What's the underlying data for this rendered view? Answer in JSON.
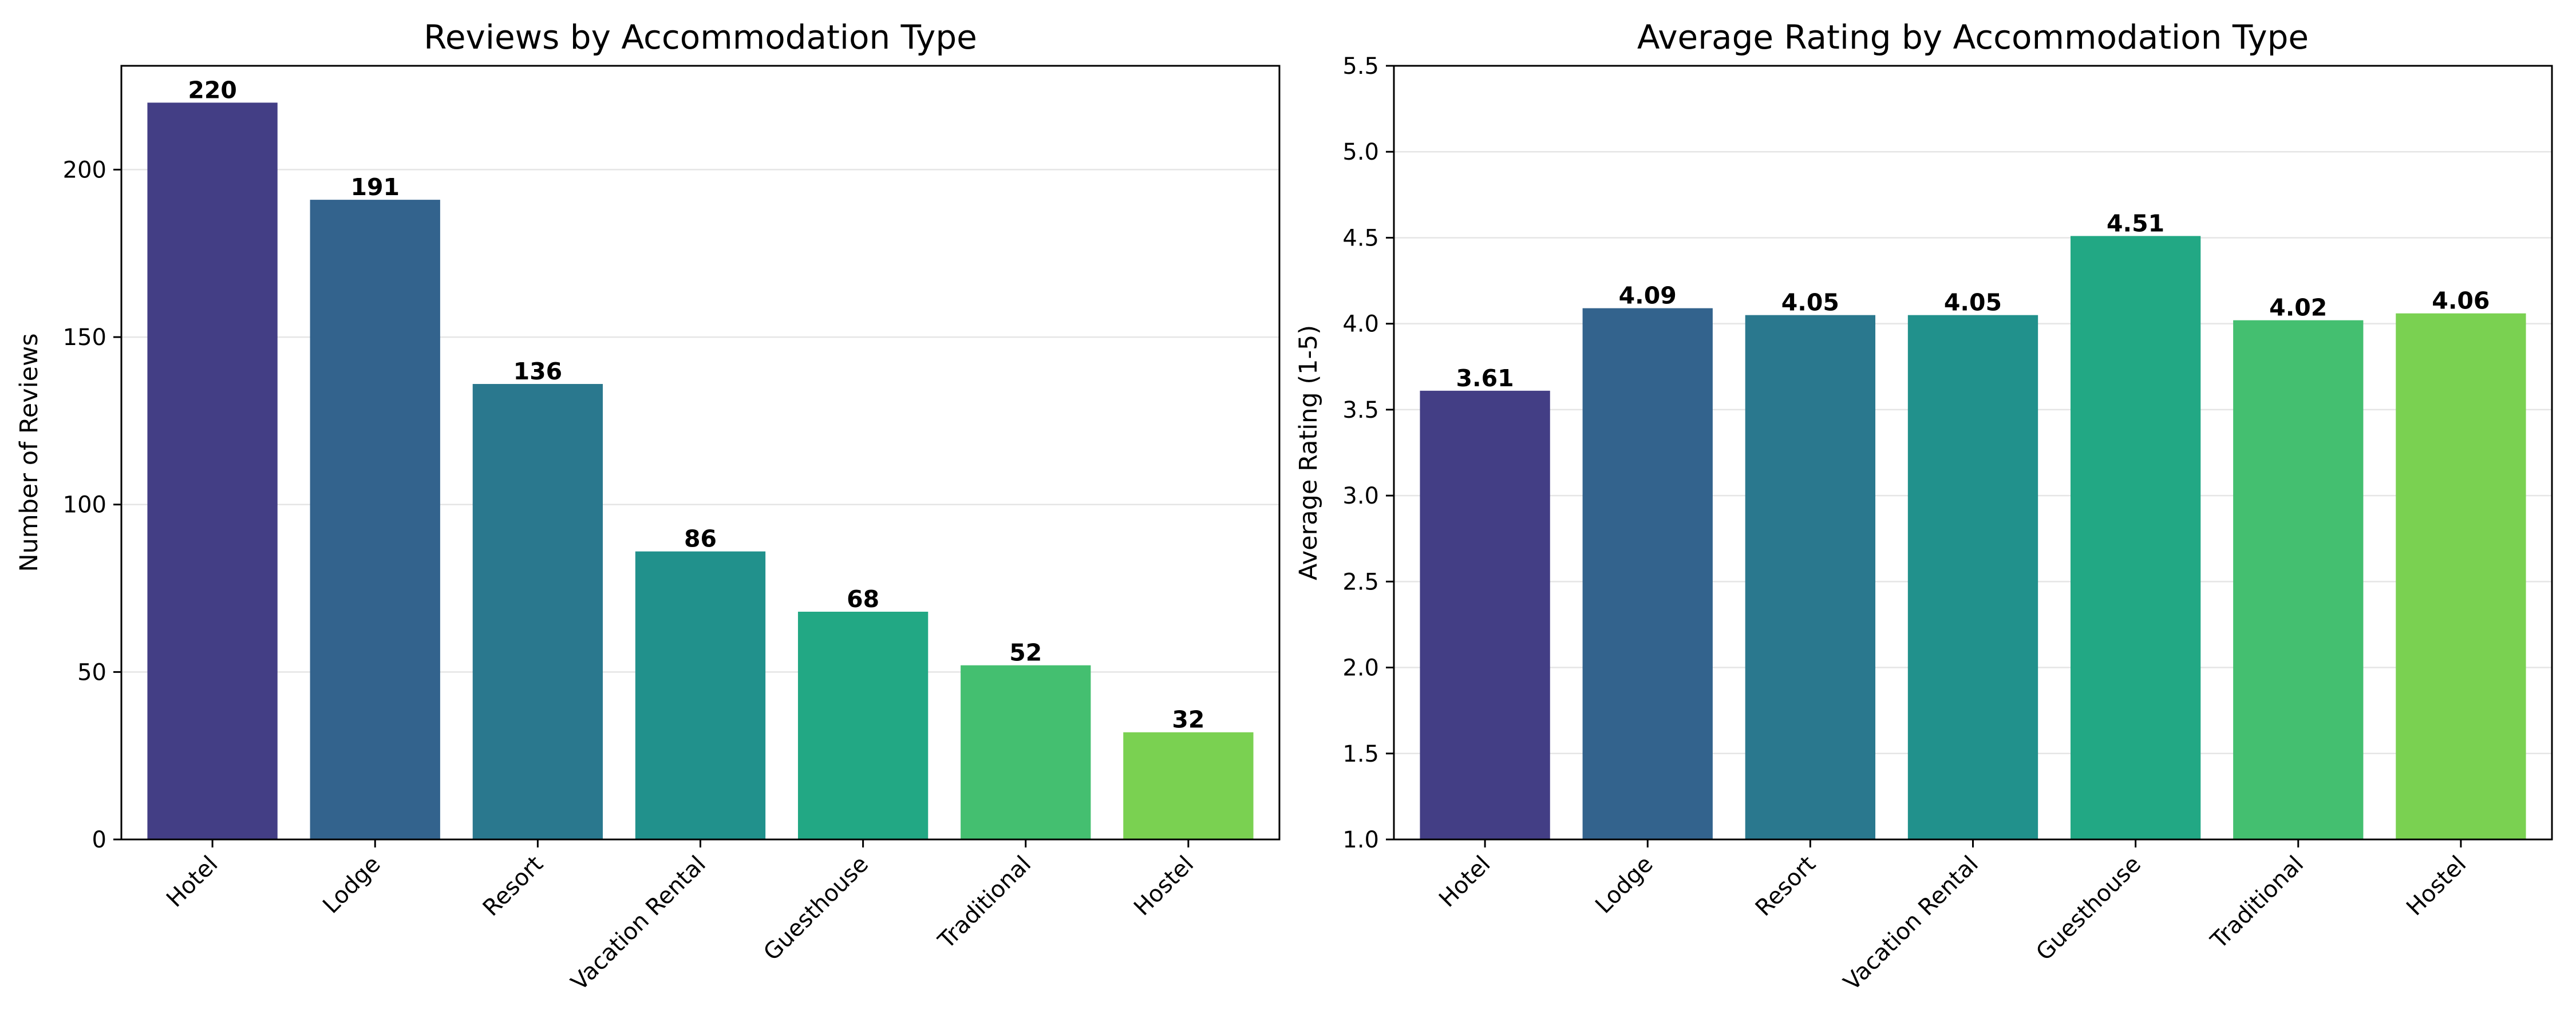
{
  "chart_data": [
    {
      "type": "bar",
      "title": "Reviews by Accommodation Type",
      "xlabel": "",
      "ylabel": "Number of Reviews",
      "categories": [
        "Hotel",
        "Lodge",
        "Resort",
        "Vacation Rental",
        "Guesthouse",
        "Traditional",
        "Hostel"
      ],
      "values": [
        220,
        191,
        136,
        86,
        68,
        52,
        32
      ],
      "value_labels": [
        "220",
        "191",
        "136",
        "86",
        "68",
        "52",
        "32"
      ],
      "ylim": [
        0,
        231
      ],
      "yticks": [
        0,
        50,
        100,
        150,
        200
      ],
      "ytick_labels": [
        "0",
        "50",
        "100",
        "150",
        "200"
      ],
      "grid": "horizontal",
      "colors": [
        "#433e85",
        "#33638d",
        "#2a788e",
        "#21918c",
        "#22a884",
        "#44bf70",
        "#7ad151"
      ]
    },
    {
      "type": "bar",
      "title": "Average Rating by Accommodation Type",
      "xlabel": "",
      "ylabel": "Average Rating (1-5)",
      "categories": [
        "Hotel",
        "Lodge",
        "Resort",
        "Vacation Rental",
        "Guesthouse",
        "Traditional",
        "Hostel"
      ],
      "values": [
        3.61,
        4.09,
        4.05,
        4.05,
        4.51,
        4.02,
        4.06
      ],
      "value_labels": [
        "3.61",
        "4.09",
        "4.05",
        "4.05",
        "4.51",
        "4.02",
        "4.06"
      ],
      "ylim": [
        1.0,
        5.5
      ],
      "yticks": [
        1.0,
        1.5,
        2.0,
        2.5,
        3.0,
        3.5,
        4.0,
        4.5,
        5.0,
        5.5
      ],
      "ytick_labels": [
        "1.0",
        "1.5",
        "2.0",
        "2.5",
        "3.0",
        "3.5",
        "4.0",
        "4.5",
        "5.0",
        "5.5"
      ],
      "grid": "horizontal",
      "colors": [
        "#433e85",
        "#33638d",
        "#2a788e",
        "#21918c",
        "#22a884",
        "#44bf70",
        "#7ad151"
      ]
    }
  ]
}
